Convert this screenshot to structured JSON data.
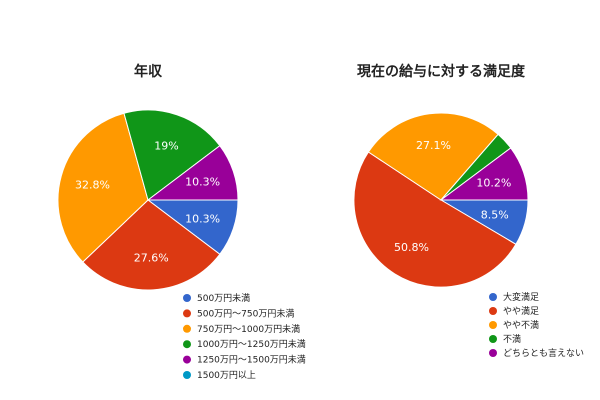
{
  "chart_data": [
    {
      "type": "pie",
      "title": "年収",
      "slices": [
        {
          "label": "500万円未満",
          "value": 10.3,
          "display": "10.3%",
          "color": "#3366cc"
        },
        {
          "label": "500万円〜750万円未満",
          "value": 27.6,
          "display": "27.6%",
          "color": "#dc3912"
        },
        {
          "label": "750万円〜1000万円未満",
          "value": 32.8,
          "display": "32.8%",
          "color": "#ff9900"
        },
        {
          "label": "1000万円〜1250万円未満",
          "value": 19.0,
          "display": "19%",
          "color": "#109618"
        },
        {
          "label": "1250万円〜1500万円未満",
          "value": 10.3,
          "display": "10.3%",
          "color": "#990099"
        },
        {
          "label": "1500万円以上",
          "value": 0,
          "display": "",
          "color": "#0099c6"
        }
      ],
      "legend_position": "bottom-right"
    },
    {
      "type": "pie",
      "title": "現在の給与に対する満足度",
      "slices": [
        {
          "label": "大変満足",
          "value": 8.5,
          "display": "8.5%",
          "color": "#3366cc"
        },
        {
          "label": "やや満足",
          "value": 50.8,
          "display": "50.8%",
          "color": "#dc3912"
        },
        {
          "label": "やや不満",
          "value": 27.1,
          "display": "27.1%",
          "color": "#ff9900"
        },
        {
          "label": "不満",
          "value": 3.4,
          "display": "",
          "color": "#109618"
        },
        {
          "label": "どちらとも言えない",
          "value": 10.2,
          "display": "10.2%",
          "color": "#990099"
        }
      ],
      "legend_position": "bottom-right"
    }
  ]
}
